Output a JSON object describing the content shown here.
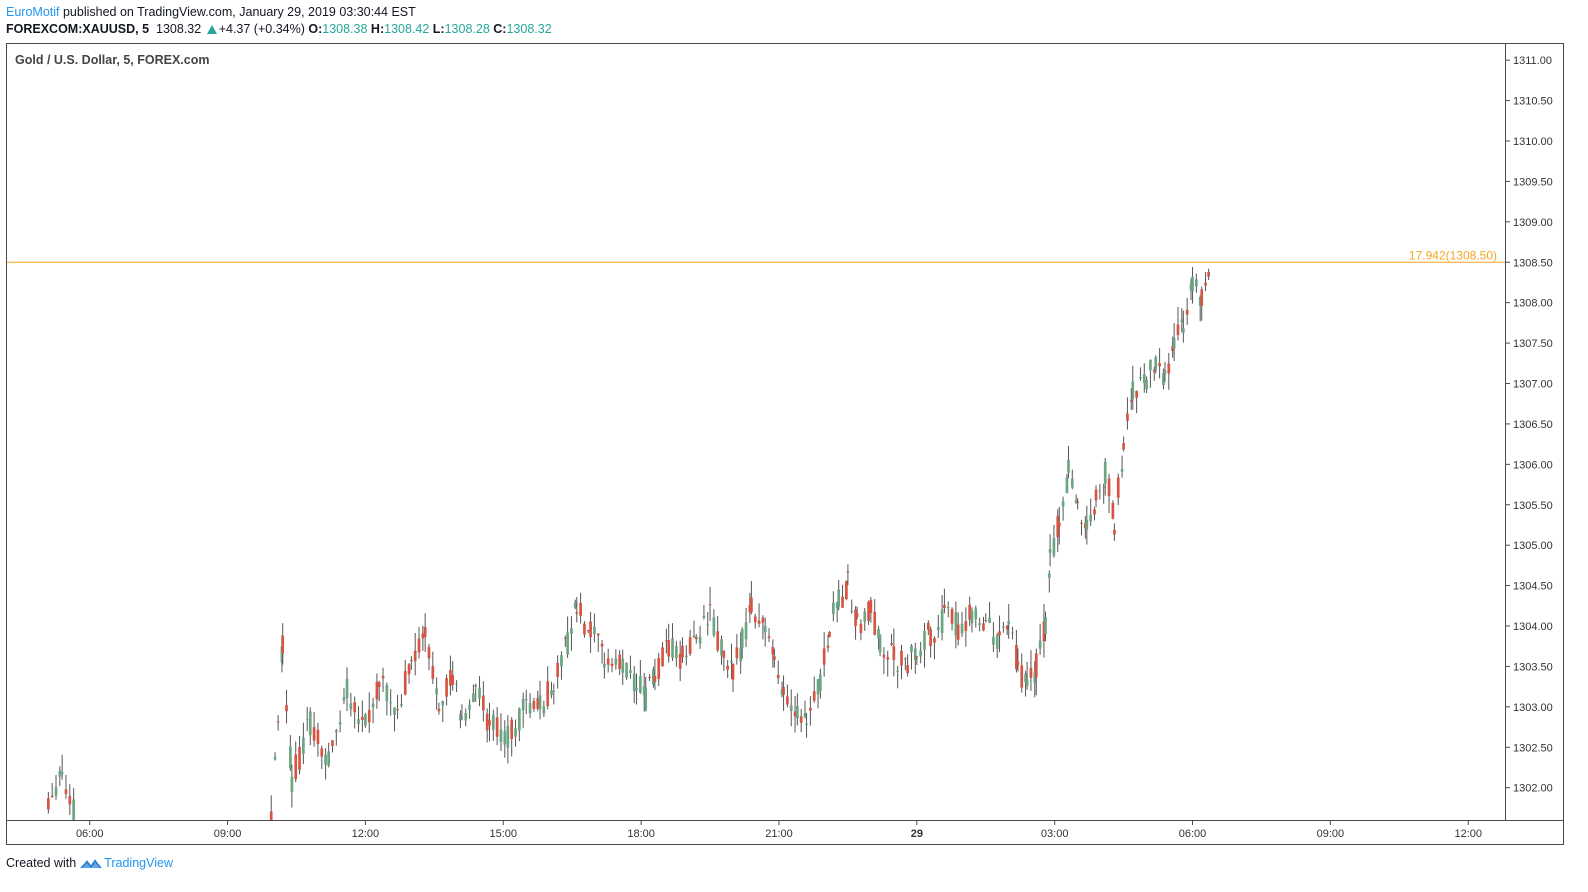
{
  "header": {
    "author": "EuroMotif",
    "published_text": " published on TradingView.com, January 29, 2019 03:30:44 EST",
    "symbol": "FOREXCOM:XAUUSD, 5",
    "last": "1308.32",
    "change": "+4.37 (+0.34%)",
    "o_label": "O:",
    "o_value": "1308.38",
    "h_label": "H:",
    "h_value": "1308.42",
    "l_label": "L:",
    "l_value": "1308.28",
    "c_label": "C:",
    "c_value": "1308.32"
  },
  "footer": {
    "created_with": "Created with",
    "brand": "TradingView"
  },
  "chart_data": {
    "type": "candlestick",
    "title": "Gold / U.S. Dollar, 5, FOREX.com",
    "x_range_hours": [
      4.2,
      36.8
    ],
    "ylim": [
      1301.6,
      1311.2
    ],
    "ytick_labels": [
      "1302.00",
      "1302.50",
      "1303.00",
      "1303.50",
      "1304.00",
      "1304.50",
      "1305.00",
      "1305.50",
      "1306.00",
      "1306.50",
      "1307.00",
      "1307.50",
      "1308.00",
      "1308.50",
      "1309.00",
      "1309.50",
      "1310.00",
      "1310.50",
      "1311.00"
    ],
    "xticks": [
      {
        "h": 6,
        "label": "06:00"
      },
      {
        "h": 9,
        "label": "09:00"
      },
      {
        "h": 12,
        "label": "12:00"
      },
      {
        "h": 15,
        "label": "15:00"
      },
      {
        "h": 18,
        "label": "18:00"
      },
      {
        "h": 21,
        "label": "21:00"
      },
      {
        "h": 24,
        "label": "29",
        "bold": true
      },
      {
        "h": 27,
        "label": "03:00"
      },
      {
        "h": 30,
        "label": "06:00"
      },
      {
        "h": 33,
        "label": "09:00"
      },
      {
        "h": 36,
        "label": "12:00"
      }
    ],
    "hline": {
      "value": 1308.5,
      "label": "17.942(1308.50)"
    },
    "colors": {
      "up": "#6ba583",
      "down": "#d75442",
      "hline": "#f5a623",
      "axis": "#555555"
    },
    "anchors": [
      [
        5.1,
        1301.9
      ],
      [
        5.4,
        1302.2
      ],
      [
        5.7,
        1301.6
      ],
      [
        9.95,
        1301.7
      ],
      [
        10.1,
        1302.9
      ],
      [
        10.2,
        1303.8
      ],
      [
        10.4,
        1302.1
      ],
      [
        10.8,
        1302.8
      ],
      [
        11.2,
        1302.3
      ],
      [
        11.6,
        1303.2
      ],
      [
        12.0,
        1302.8
      ],
      [
        12.3,
        1303.3
      ],
      [
        12.7,
        1302.9
      ],
      [
        13.0,
        1303.6
      ],
      [
        13.3,
        1303.9
      ],
      [
        13.6,
        1303.1
      ],
      [
        13.9,
        1303.4
      ],
      [
        14.1,
        1302.8
      ],
      [
        14.4,
        1303.2
      ],
      [
        14.7,
        1302.8
      ],
      [
        15.1,
        1302.6
      ],
      [
        15.5,
        1303.0
      ],
      [
        15.8,
        1303.0
      ],
      [
        16.1,
        1303.3
      ],
      [
        16.4,
        1303.8
      ],
      [
        16.6,
        1304.2
      ],
      [
        16.9,
        1303.9
      ],
      [
        17.2,
        1303.6
      ],
      [
        17.6,
        1303.5
      ],
      [
        17.9,
        1303.3
      ],
      [
        18.1,
        1303.1
      ],
      [
        18.3,
        1303.4
      ],
      [
        18.6,
        1303.7
      ],
      [
        18.9,
        1303.6
      ],
      [
        19.2,
        1303.9
      ],
      [
        19.5,
        1304.1
      ],
      [
        19.8,
        1303.6
      ],
      [
        20.0,
        1303.4
      ],
      [
        20.2,
        1303.8
      ],
      [
        20.4,
        1304.3
      ],
      [
        20.7,
        1304.0
      ],
      [
        20.9,
        1303.5
      ],
      [
        21.1,
        1303.2
      ],
      [
        21.4,
        1303.0
      ],
      [
        21.6,
        1302.9
      ],
      [
        21.9,
        1303.3
      ],
      [
        22.1,
        1304.0
      ],
      [
        22.3,
        1304.3
      ],
      [
        22.5,
        1304.5
      ],
      [
        22.7,
        1304.0
      ],
      [
        23.0,
        1304.2
      ],
      [
        23.2,
        1303.8
      ],
      [
        23.5,
        1303.6
      ],
      [
        23.8,
        1303.5
      ],
      [
        24.0,
        1303.7
      ],
      [
        24.3,
        1303.9
      ],
      [
        24.6,
        1304.1
      ],
      [
        24.9,
        1304.0
      ],
      [
        25.2,
        1304.2
      ],
      [
        25.5,
        1304.0
      ],
      [
        25.8,
        1303.8
      ],
      [
        26.0,
        1304.1
      ],
      [
        26.2,
        1303.5
      ],
      [
        26.4,
        1303.2
      ],
      [
        26.6,
        1303.5
      ],
      [
        26.8,
        1304.0
      ],
      [
        26.9,
        1304.8
      ],
      [
        27.1,
        1305.3
      ],
      [
        27.3,
        1305.9
      ],
      [
        27.5,
        1305.5
      ],
      [
        27.7,
        1305.2
      ],
      [
        27.9,
        1305.6
      ],
      [
        28.1,
        1305.9
      ],
      [
        28.3,
        1305.3
      ],
      [
        28.5,
        1306.2
      ],
      [
        28.7,
        1306.9
      ],
      [
        29.0,
        1307.0
      ],
      [
        29.2,
        1307.3
      ],
      [
        29.4,
        1307.1
      ],
      [
        29.6,
        1307.5
      ],
      [
        29.8,
        1307.8
      ],
      [
        30.0,
        1308.2
      ],
      [
        30.2,
        1308.0
      ],
      [
        30.35,
        1308.35
      ]
    ]
  }
}
